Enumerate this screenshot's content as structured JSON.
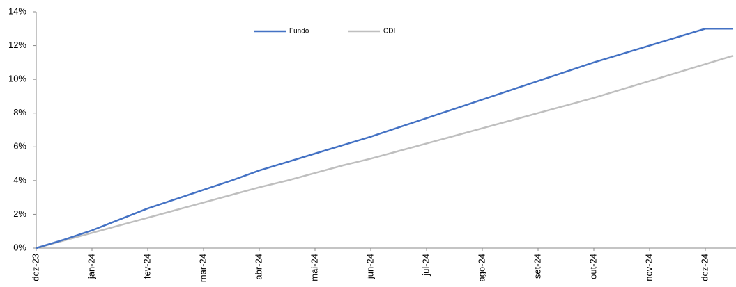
{
  "chart_data": {
    "type": "line",
    "categories": [
      "dez-23",
      null,
      "jan-24",
      null,
      "fev-24",
      null,
      "mar-24",
      null,
      "abr-24",
      null,
      "mai-24",
      null,
      "jun-24",
      null,
      "jul-24",
      null,
      "ago-24",
      null,
      "set-24",
      null,
      "out-24",
      null,
      "nov-24",
      null,
      "dez-24",
      null
    ],
    "series": [
      {
        "name": "Fundo",
        "color": "#4472c4",
        "values": [
          0,
          0.5,
          1.05,
          1.7,
          2.35,
          2.9,
          3.45,
          4.0,
          4.6,
          5.1,
          5.6,
          6.1,
          6.6,
          7.15,
          7.7,
          8.25,
          8.8,
          9.35,
          9.9,
          10.45,
          11.0,
          11.5,
          12.0,
          12.5,
          13.0,
          13.0
        ]
      },
      {
        "name": "CDI",
        "color": "#bfbfbf",
        "values": [
          0,
          0.45,
          0.9,
          1.35,
          1.8,
          2.25,
          2.7,
          3.15,
          3.6,
          4.0,
          4.45,
          4.9,
          5.3,
          5.75,
          6.2,
          6.65,
          7.1,
          7.55,
          8.0,
          8.45,
          8.9,
          9.4,
          9.9,
          10.4,
          10.9,
          11.4
        ]
      }
    ],
    "ylim": [
      0,
      14
    ],
    "yticks": [
      {
        "value": 0,
        "label": "0%"
      },
      {
        "value": 2,
        "label": "2%"
      },
      {
        "value": 4,
        "label": "4%"
      },
      {
        "value": 6,
        "label": "6%"
      },
      {
        "value": 8,
        "label": "8%"
      },
      {
        "value": 10,
        "label": "10%"
      },
      {
        "value": 12,
        "label": "12%"
      },
      {
        "value": 14,
        "label": "14%"
      }
    ],
    "legend": "top"
  }
}
